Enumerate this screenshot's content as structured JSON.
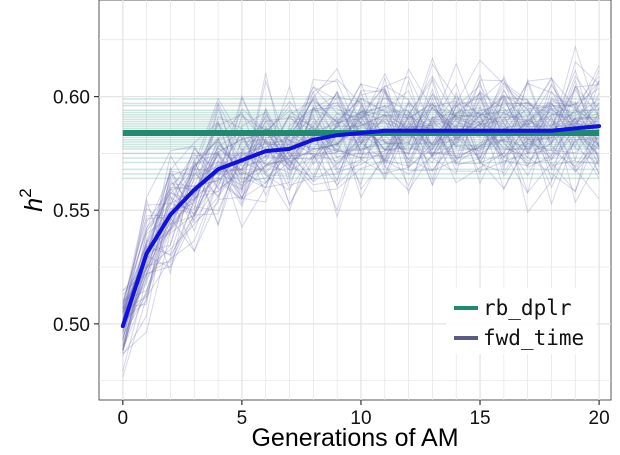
{
  "chart_data": {
    "type": "line",
    "title": "",
    "xlabel": "Generations of AM",
    "ylabel": "h",
    "ylabel_superscript": "2",
    "xlim": [
      -1,
      20.5
    ],
    "ylim": [
      0.4665,
      0.6425
    ],
    "x_ticks": [
      0,
      5,
      10,
      15,
      20
    ],
    "x_tick_labels": [
      "0",
      "5",
      "10",
      "15",
      "20"
    ],
    "y_ticks": [
      0.5,
      0.55,
      0.6
    ],
    "y_tick_labels": [
      "0.50",
      "0.55",
      "0.60"
    ],
    "grid": true,
    "legend_position": "bottom-right",
    "legend": [
      {
        "name": "rb_dplr",
        "color": "#1f8a70"
      },
      {
        "name": "fwd_time",
        "color": "#5a5a85"
      }
    ],
    "series": [
      {
        "name": "rb_dplr",
        "role": "constant",
        "color": "#1f8a70",
        "mean": 0.584,
        "replicate_values": [
          0.564,
          0.566,
          0.568,
          0.571,
          0.573,
          0.575,
          0.577,
          0.578,
          0.579,
          0.58,
          0.581,
          0.582,
          0.583,
          0.583,
          0.584,
          0.585,
          0.585,
          0.586,
          0.587,
          0.588,
          0.589,
          0.59,
          0.591,
          0.592,
          0.593,
          0.594,
          0.596,
          0.597,
          0.599
        ]
      },
      {
        "name": "fwd_time",
        "role": "mean",
        "color": "#1010e0",
        "x": [
          0,
          1,
          2,
          3,
          4,
          5,
          6,
          7,
          8,
          9,
          10,
          11,
          12,
          13,
          14,
          15,
          16,
          17,
          18,
          19,
          20
        ],
        "values": [
          0.499,
          0.531,
          0.548,
          0.559,
          0.568,
          0.572,
          0.576,
          0.577,
          0.581,
          0.583,
          0.584,
          0.585,
          0.585,
          0.585,
          0.585,
          0.585,
          0.585,
          0.585,
          0.585,
          0.586,
          0.587
        ]
      }
    ],
    "replicates": {
      "series": "fwd_time",
      "count": 60,
      "color": "#6b6bb0"
    }
  }
}
